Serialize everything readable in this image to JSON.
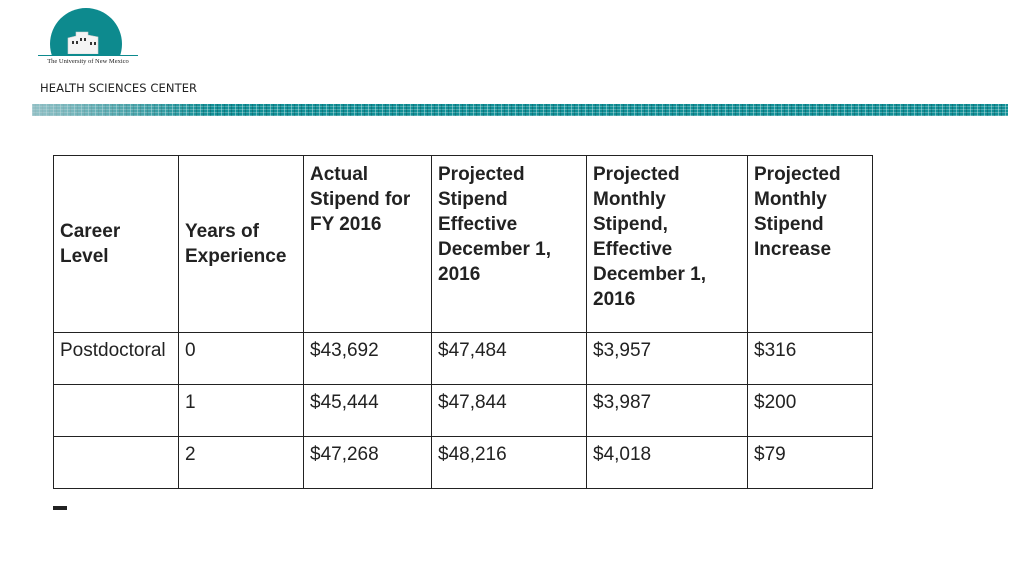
{
  "header": {
    "logo_text": "The University of New Mexico",
    "subtitle": "HEALTH SCIENCES CENTER",
    "colors": {
      "teal": "#0d8a8e"
    }
  },
  "table": {
    "headers": [
      "Career Level",
      "Years of Experience",
      "Actual Stipend for FY 2016",
      "Projected Stipend Effective December 1, 2016",
      "Projected Monthly Stipend, Effective December 1, 2016",
      "Projected Monthly Stipend Increase"
    ],
    "rows": [
      [
        "Postdoctoral",
        "0",
        "$43,692",
        "$47,484",
        "$3,957",
        "$316"
      ],
      [
        "",
        "1",
        "$45,444",
        "$47,844",
        "$3,987",
        "$200"
      ],
      [
        "",
        "2",
        "$47,268",
        "$48,216",
        "$4,018",
        "$79"
      ]
    ]
  }
}
